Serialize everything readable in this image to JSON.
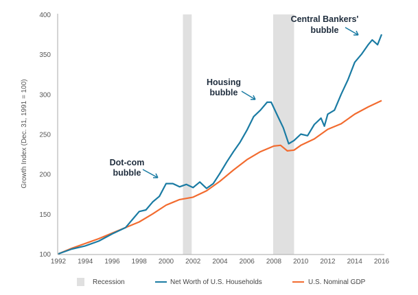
{
  "chart_data": {
    "type": "line",
    "title": "",
    "xlabel": "",
    "ylabel": "Growth Index (Dec. 31, 1991 = 100)",
    "xlim": [
      1992,
      2016
    ],
    "ylim": [
      100,
      400
    ],
    "x_ticks": [
      "1992",
      "1994",
      "1996",
      "1998",
      "2000",
      "2002",
      "2004",
      "2006",
      "2008",
      "2010",
      "2012",
      "2014",
      "2016"
    ],
    "y_ticks": [
      "100",
      "150",
      "200",
      "250",
      "300",
      "350",
      "400"
    ],
    "recessions": [
      [
        2001.25,
        2001.9
      ],
      [
        2007.95,
        2009.5
      ]
    ],
    "legend": {
      "position": "bottom",
      "recession_label": "Recession"
    },
    "series": [
      {
        "name": "Net Worth of U.S. Households",
        "color": "#1a7ba3",
        "x": [
          1992,
          1993,
          1994,
          1995,
          1996,
          1997,
          1997.5,
          1998,
          1998.5,
          1999,
          1999.5,
          2000,
          2000.5,
          2001,
          2001.5,
          2002,
          2002.5,
          2003,
          2003.5,
          2004,
          2004.5,
          2005,
          2005.5,
          2006,
          2006.5,
          2007,
          2007.5,
          2007.8,
          2008.3,
          2008.7,
          2009.1,
          2009.5,
          2010,
          2010.5,
          2011,
          2011.5,
          2011.75,
          2012,
          2012.5,
          2013,
          2013.5,
          2014,
          2014.5,
          2015,
          2015.3,
          2015.7,
          2016
        ],
        "y": [
          100,
          106,
          110,
          116,
          125,
          133,
          143,
          153,
          155,
          165,
          172,
          188,
          188,
          184,
          187,
          183,
          190,
          182,
          188,
          201,
          215,
          228,
          240,
          255,
          272,
          280,
          290,
          290,
          272,
          258,
          238,
          242,
          250,
          248,
          262,
          270,
          260,
          275,
          280,
          300,
          318,
          340,
          350,
          362,
          368,
          362,
          375
        ]
      },
      {
        "name": "U.S. Nominal GDP",
        "color": "#f26b2f",
        "x": [
          1992,
          1993,
          1994,
          1995,
          1996,
          1997,
          1998,
          1999,
          2000,
          2001,
          2002,
          2003,
          2004,
          2005,
          2006,
          2007,
          2008,
          2008.5,
          2009,
          2009.5,
          2010,
          2011,
          2012,
          2013,
          2014,
          2015,
          2016
        ],
        "y": [
          100,
          107,
          113,
          119,
          126,
          133,
          140,
          150,
          161,
          168,
          171,
          179,
          191,
          205,
          218,
          228,
          235,
          236,
          229,
          230,
          236,
          244,
          256,
          263,
          275,
          284,
          292
        ]
      }
    ],
    "annotations": [
      {
        "lines": [
          "Dot-com",
          "bubble"
        ]
      },
      {
        "lines": [
          "Housing",
          "bubble"
        ]
      },
      {
        "lines": [
          "Central Bankers'",
          "bubble"
        ]
      }
    ]
  }
}
